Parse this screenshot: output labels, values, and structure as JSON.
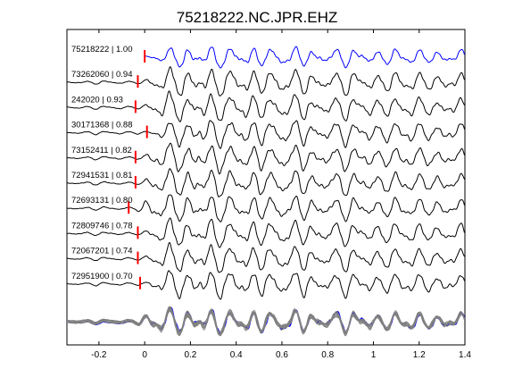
{
  "chart_data": {
    "type": "line",
    "title": "75218222.NC.JPR.EHZ",
    "xlabel": "",
    "ylabel": "",
    "xlim": [
      -0.34,
      1.4
    ],
    "x_ticks": [
      -0.2,
      0,
      0.2,
      0.4,
      0.6,
      0.8,
      1,
      1.2,
      1.4
    ],
    "x_tick_labels": [
      "-0.2",
      "0",
      "0.2",
      "0.4",
      "0.6",
      "0.8",
      "1",
      "1.2",
      "1.4"
    ],
    "grid": false,
    "legend": "none",
    "colors": {
      "reference": "#0000ff",
      "trace": "#000000",
      "stack": "#808080",
      "pick": "#ff0000"
    },
    "series": [
      {
        "label": "75218222 | 1.00",
        "pick_time": 0.0,
        "color": "#0000ff"
      },
      {
        "label": "73262060 | 0.94",
        "pick_time": -0.03,
        "color": "#000000"
      },
      {
        "label": "242020 | 0.93",
        "pick_time": -0.04,
        "color": "#000000"
      },
      {
        "label": "30171368 | 0.88",
        "pick_time": 0.01,
        "color": "#000000"
      },
      {
        "label": "73152411 | 0.82",
        "pick_time": -0.04,
        "color": "#000000"
      },
      {
        "label": "72941531 | 0.81",
        "pick_time": -0.04,
        "color": "#000000"
      },
      {
        "label": "72693131 | 0.80",
        "pick_time": -0.07,
        "color": "#000000"
      },
      {
        "label": "72809746 | 0.78",
        "pick_time": -0.03,
        "color": "#000000"
      },
      {
        "label": "72067201 | 0.74",
        "pick_time": -0.03,
        "color": "#000000"
      },
      {
        "label": "72951900 | 0.70",
        "pick_time": -0.02,
        "color": "#000000"
      }
    ]
  }
}
